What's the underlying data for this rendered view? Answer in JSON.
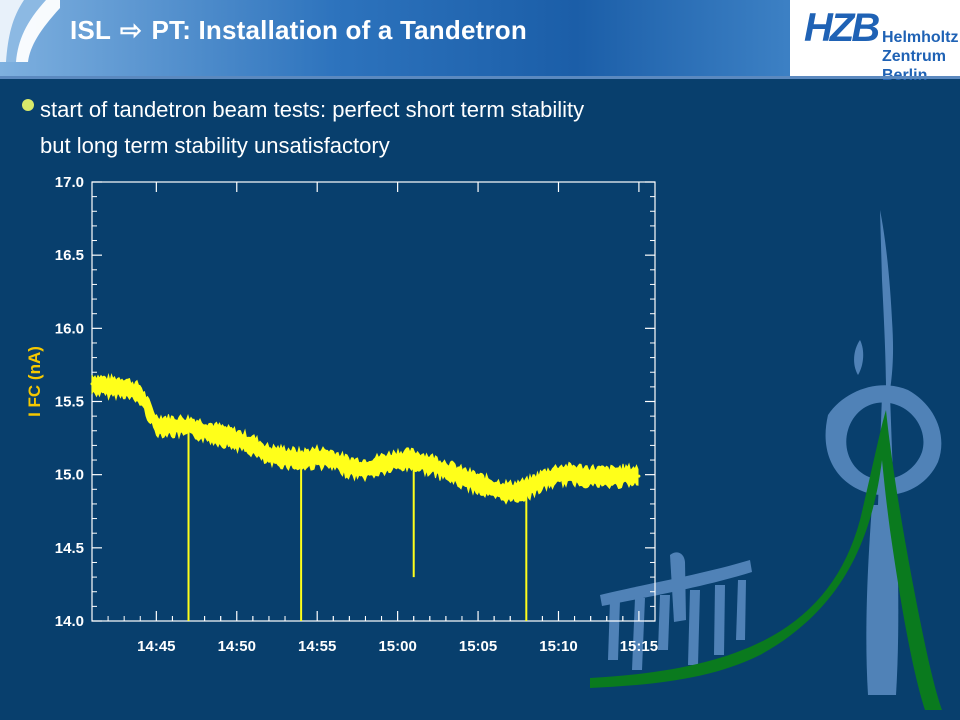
{
  "header": {
    "title_left": "ISL",
    "arrow_glyph": "⇨",
    "title_right": "PT: Installation of a Tandetron",
    "logo_main": "HZB",
    "logo_sub_line1": "Helmholtz",
    "logo_sub_line2": "Zentrum Berlin"
  },
  "bullet": {
    "line1": "start of tandetron beam tests: perfect short term stability",
    "line2": "but long term stability unsatisfactory"
  },
  "colors": {
    "background": "#083f6d",
    "trace": "#ffff1a",
    "axis": "#ffffff",
    "ylabel": "#f5c800",
    "bullet": "#d8e96a"
  },
  "chart_data": {
    "type": "line",
    "title": "",
    "xlabel": "",
    "ylabel": "I FC (nA)",
    "x_ticks": [
      "14:45",
      "14:50",
      "14:55",
      "15:00",
      "15:05",
      "15:10",
      "15:15"
    ],
    "y_ticks": [
      "14.0",
      "14.5",
      "15.0",
      "15.5",
      "16.0",
      "16.5",
      "17.0"
    ],
    "ylim": [
      14.0,
      17.0
    ],
    "xlim": [
      "14:41",
      "15:16"
    ],
    "series": [
      {
        "x": [
          "14:41",
          "14:42",
          "14:43",
          "14:44",
          "14:45",
          "14:46",
          "14:47",
          "14:48",
          "14:49",
          "14:50",
          "14:51",
          "14:52",
          "14:53",
          "14:54",
          "14:55",
          "14:56",
          "14:57",
          "14:58",
          "14:59",
          "15:00",
          "15:01",
          "15:02",
          "15:03",
          "15:04",
          "15:05",
          "15:06",
          "15:07",
          "15:08",
          "15:09",
          "15:10",
          "15:11",
          "15:12",
          "15:13",
          "15:14",
          "15:15"
        ],
        "values": [
          15.62,
          15.6,
          15.6,
          15.55,
          15.34,
          15.33,
          15.33,
          15.3,
          15.27,
          15.24,
          15.2,
          15.13,
          15.12,
          15.1,
          15.12,
          15.1,
          15.05,
          15.04,
          15.07,
          15.1,
          15.1,
          15.07,
          15.03,
          14.98,
          14.94,
          14.9,
          14.88,
          14.9,
          14.96,
          15.0,
          15.0,
          14.99,
          14.98,
          14.99,
          14.99
        ]
      }
    ],
    "spikes": [
      {
        "x": "14:47",
        "low": 14.0
      },
      {
        "x": "14:54",
        "low": 14.0
      },
      {
        "x": "15:01",
        "low": 14.3
      },
      {
        "x": "15:08",
        "low": 14.0
      }
    ]
  }
}
